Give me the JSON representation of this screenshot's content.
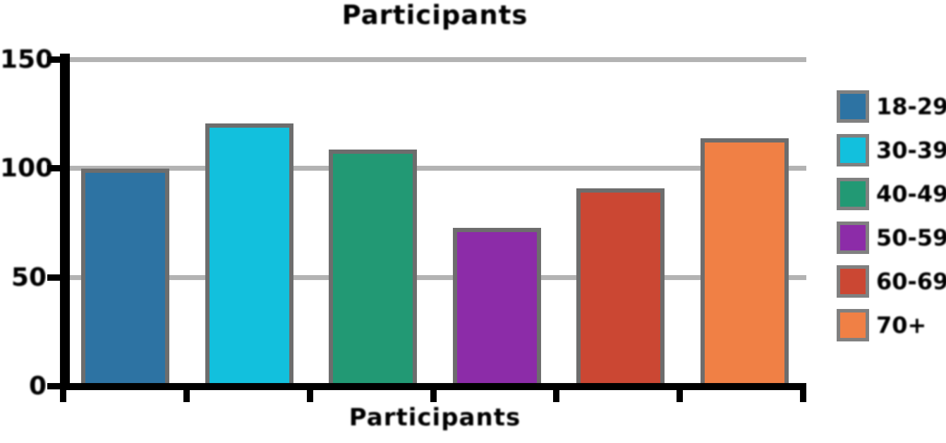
{
  "chart_data": {
    "type": "bar",
    "title": "Participants",
    "xlabel": "Participants",
    "ylabel": "",
    "categories": [
      "18-29",
      "30-39",
      "40-49",
      "50-59",
      "60-69",
      "70+"
    ],
    "values": [
      100,
      121,
      109,
      73,
      91,
      114
    ],
    "ylim": [
      0,
      150
    ],
    "ytick_labels": [
      "0",
      "50",
      "100",
      "150"
    ],
    "ytick_values": [
      0,
      50,
      100,
      150
    ],
    "grid": "horizontal",
    "legend_position": "right",
    "bar_colors": [
      "#2d73a3",
      "#12c0dd",
      "#229974",
      "#8c2ca8",
      "#cb4733",
      "#f08045"
    ],
    "bar_border_color": "#6d6d6d",
    "legend_swatch_border_color": "#808080",
    "gridline_color": "#b3b3b3",
    "axis_color": "#000000",
    "text_color": "#000000",
    "x_tick_count": 7
  }
}
